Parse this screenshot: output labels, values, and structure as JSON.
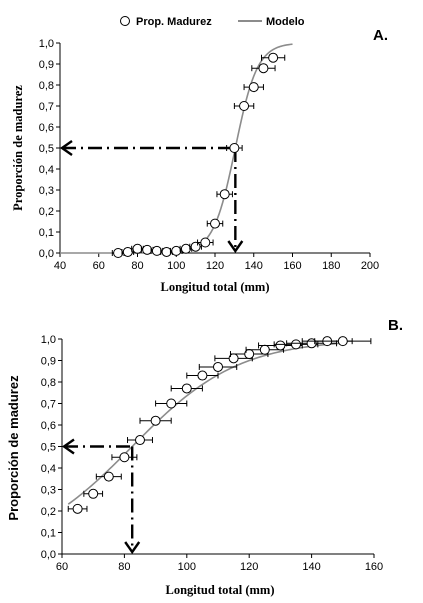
{
  "legend": {
    "points_label": "Prop. Madurez",
    "line_label": "Modelo"
  },
  "colors": {
    "axis": "#000000",
    "model_line": "#8c8c8c",
    "marker_fill": "#ffffff",
    "marker_stroke": "#000000",
    "error_bar": "#000000",
    "guide": "#000000"
  },
  "chart_data": [
    {
      "panel_label": "A.",
      "type": "scatter",
      "xlabel": "Longitud total (mm)",
      "ylabel": "Proporción de madurez",
      "xlim": [
        40,
        200
      ],
      "ylim": [
        0,
        1
      ],
      "xticks": [
        "40",
        "60",
        "80",
        "100",
        "120",
        "140",
        "160",
        "180",
        "200"
      ],
      "yticks": [
        "0,0",
        "0,1",
        "0,2",
        "0,3",
        "0,4",
        "0,5",
        "0,6",
        "0,7",
        "0,8",
        "0,9",
        "1,0"
      ],
      "legend_position": "top-center",
      "series": [
        {
          "name": "Prop. Madurez",
          "kind": "points",
          "x": [
            70,
            75,
            80,
            85,
            90,
            95,
            100,
            105,
            110,
            115,
            120,
            125,
            130,
            135,
            140,
            145,
            150
          ],
          "y": [
            0.0,
            0.005,
            0.02,
            0.015,
            0.01,
            0.005,
            0.01,
            0.02,
            0.03,
            0.05,
            0.14,
            0.28,
            0.5,
            0.7,
            0.79,
            0.88,
            0.93
          ],
          "xerr": [
            3,
            3,
            3,
            3,
            3,
            3,
            3,
            3,
            3,
            4,
            4,
            4,
            4,
            5,
            5,
            6,
            6
          ]
        },
        {
          "name": "Modelo",
          "kind": "logistic",
          "l50": 130.5,
          "slope": 0.176,
          "x_range": [
            40,
            160
          ]
        }
      ],
      "guides": {
        "x50": 130.5,
        "y": 0.5
      }
    },
    {
      "panel_label": "B.",
      "type": "scatter",
      "xlabel": "Longitud total (mm)",
      "ylabel": "Proporción de madurez",
      "xlim": [
        60,
        160
      ],
      "ylim": [
        0,
        1
      ],
      "xticks": [
        "60",
        "80",
        "100",
        "120",
        "140",
        "160"
      ],
      "yticks": [
        "0,0",
        "0,1",
        "0,2",
        "0,3",
        "0,4",
        "0,5",
        "0,6",
        "0,7",
        "0,8",
        "0,9",
        "1,0"
      ],
      "series": [
        {
          "name": "Prop. Madurez",
          "kind": "points",
          "x": [
            65,
            70,
            75,
            80,
            85,
            90,
            95,
            100,
            105,
            110,
            115,
            120,
            125,
            130,
            135,
            140,
            145,
            150
          ],
          "y": [
            0.21,
            0.28,
            0.36,
            0.45,
            0.53,
            0.62,
            0.7,
            0.77,
            0.83,
            0.87,
            0.91,
            0.93,
            0.95,
            0.97,
            0.975,
            0.98,
            0.99,
            0.99
          ],
          "xerr": [
            3,
            3,
            4,
            4,
            4,
            5,
            5,
            5,
            5,
            6,
            6,
            6,
            6,
            7,
            7,
            8,
            8,
            9
          ]
        },
        {
          "name": "Modelo",
          "kind": "logistic",
          "l50": 82.5,
          "slope": 0.0585,
          "x_range": [
            62,
            150
          ]
        }
      ],
      "guides": {
        "x50": 82.5,
        "y": 0.5
      }
    }
  ]
}
